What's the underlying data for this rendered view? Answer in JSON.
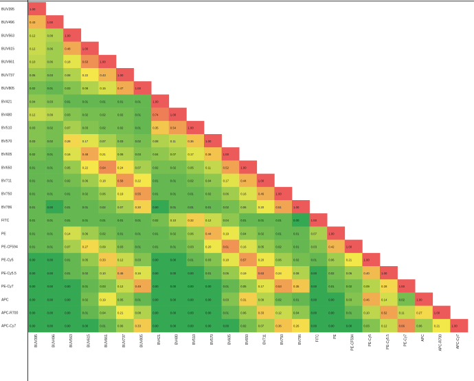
{
  "chart_data": {
    "type": "heatmap",
    "title": "",
    "xlabel": "",
    "ylabel": "",
    "labels": [
      "BUV395",
      "BUV496",
      "BUV563",
      "BUV615",
      "BUV661",
      "BUV737",
      "BUV805",
      "BV421",
      "BV480",
      "BV510",
      "BV570",
      "BV605",
      "BV650",
      "BV711",
      "BV750",
      "BV786",
      "FITC",
      "PE",
      "PE-CF594",
      "PE-Cy5",
      "PE-Cy5.5",
      "PE-Cy7",
      "APC",
      "APC-R700",
      "APC-Cy7"
    ],
    "values": [
      [
        1.0
      ],
      [
        0.43,
        1.0
      ],
      [
        0.12,
        0.08,
        1.0
      ],
      [
        0.12,
        0.06,
        0.48,
        1.0
      ],
      [
        0.1,
        0.06,
        0.18,
        0.63,
        1.0
      ],
      [
        0.05,
        0.03,
        0.08,
        0.22,
        0.43,
        1.0
      ],
      [
        0.02,
        0.01,
        0.03,
        0.08,
        0.15,
        0.47,
        1.0
      ],
      [
        0.04,
        0.03,
        0.01,
        0.01,
        0.01,
        0.01,
        0.01,
        1.0
      ],
      [
        0.12,
        0.09,
        0.03,
        0.02,
        0.02,
        0.02,
        0.01,
        0.74,
        1.0
      ],
      [
        0.03,
        0.02,
        0.07,
        0.03,
        0.02,
        0.02,
        0.01,
        0.35,
        0.54,
        1.0
      ],
      [
        0.03,
        0.02,
        0.28,
        0.17,
        0.07,
        0.03,
        0.02,
        0.08,
        0.11,
        0.36,
        1.0
      ],
      [
        0.02,
        0.01,
        0.16,
        0.48,
        0.21,
        0.08,
        0.03,
        0.04,
        0.07,
        0.17,
        0.36,
        1.0
      ],
      [
        0.01,
        0.01,
        0.05,
        0.22,
        0.64,
        0.24,
        0.07,
        0.02,
        0.02,
        0.05,
        0.11,
        0.52,
        1.0
      ],
      [
        0.01,
        0.01,
        0.02,
        0.06,
        0.18,
        0.58,
        0.22,
        0.01,
        0.01,
        0.02,
        0.04,
        0.17,
        0.44,
        1.0
      ],
      [
        0.01,
        0.01,
        0.01,
        0.02,
        0.06,
        0.19,
        0.55,
        0.01,
        0.01,
        0.01,
        0.02,
        0.06,
        0.16,
        0.46,
        1.0
      ],
      [
        0.01,
        0.0,
        0.01,
        0.01,
        0.02,
        0.07,
        0.3,
        0.0,
        0.01,
        0.01,
        0.01,
        0.02,
        0.06,
        0.2,
        0.51,
        1.0
      ],
      [
        0.01,
        0.01,
        0.01,
        0.01,
        0.01,
        0.01,
        0.01,
        0.02,
        0.1,
        0.32,
        0.12,
        0.04,
        0.01,
        0.01,
        0.01,
        0.0,
        1.0
      ],
      [
        0.01,
        0.01,
        0.14,
        0.06,
        0.02,
        0.01,
        0.01,
        0.01,
        0.02,
        0.06,
        0.44,
        0.19,
        0.04,
        0.02,
        0.01,
        0.01,
        0.07,
        1.0
      ],
      [
        0.01,
        0.01,
        0.07,
        0.27,
        0.09,
        0.03,
        0.01,
        0.01,
        0.01,
        0.03,
        0.2,
        0.61,
        0.16,
        0.05,
        0.02,
        0.01,
        0.03,
        0.42,
        1.0
      ],
      [
        0.0,
        0.0,
        0.01,
        0.05,
        0.33,
        0.12,
        0.03,
        0.0,
        0.0,
        0.01,
        0.03,
        0.18,
        0.57,
        0.2,
        0.06,
        0.02,
        0.01,
        0.06,
        0.21,
        1.0
      ],
      [
        0.0,
        0.0,
        0.01,
        0.02,
        0.1,
        0.46,
        0.16,
        0.0,
        0.0,
        0.0,
        0.01,
        0.05,
        0.19,
        0.63,
        0.24,
        0.08,
        0.0,
        0.02,
        0.06,
        0.4,
        1.0
      ],
      [
        0.0,
        0.0,
        0.0,
        0.01,
        0.03,
        0.12,
        0.49,
        0.0,
        0.0,
        0.0,
        0.0,
        0.01,
        0.05,
        0.17,
        0.53,
        0.35,
        0.0,
        0.01,
        0.02,
        0.09,
        0.28,
        1.0
      ],
      [
        0.0,
        0.0,
        0.0,
        0.02,
        0.19,
        0.05,
        0.01,
        0.0,
        0.0,
        0.0,
        0.0,
        0.03,
        0.31,
        0.09,
        0.02,
        0.01,
        0.0,
        0.0,
        0.03,
        0.46,
        0.14,
        0.02,
        1.0
      ],
      [
        0.0,
        0.0,
        0.0,
        0.01,
        0.04,
        0.21,
        0.08,
        0.0,
        0.0,
        0.0,
        0.0,
        0.01,
        0.06,
        0.33,
        0.12,
        0.04,
        0.0,
        0.0,
        0.01,
        0.1,
        0.52,
        0.11,
        0.27,
        1.0
      ],
      [
        0.0,
        0.0,
        0.0,
        0.0,
        0.01,
        0.06,
        0.33,
        0.0,
        0.0,
        0.0,
        0.0,
        0.0,
        0.02,
        0.07,
        0.36,
        0.26,
        0.0,
        0.0,
        0.0,
        0.03,
        0.12,
        0.66,
        0.06,
        0.21,
        1.0
      ]
    ],
    "color_scale": {
      "low": "#34a853",
      "mid": "#f5e94a",
      "high": "#ec5a5a"
    },
    "grid": false,
    "legend": "none"
  }
}
